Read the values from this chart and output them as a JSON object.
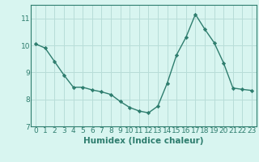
{
  "x": [
    0,
    1,
    2,
    3,
    4,
    5,
    6,
    7,
    8,
    9,
    10,
    11,
    12,
    13,
    14,
    15,
    16,
    17,
    18,
    19,
    20,
    21,
    22,
    23
  ],
  "y": [
    10.05,
    9.9,
    9.4,
    8.9,
    8.45,
    8.45,
    8.35,
    8.28,
    8.18,
    7.92,
    7.7,
    7.57,
    7.5,
    7.75,
    8.6,
    9.65,
    10.3,
    11.15,
    10.6,
    10.1,
    9.35,
    8.42,
    8.37,
    8.33
  ],
  "line_color": "#2e7d6e",
  "marker": "D",
  "marker_size": 2.2,
  "linewidth": 1.0,
  "bg_color": "#d8f5f0",
  "grid_color": "#b8ddd8",
  "xlabel": "Humidex (Indice chaleur)",
  "xlabel_fontsize": 7.5,
  "ylim": [
    7,
    11.5
  ],
  "xlim": [
    -0.5,
    23.5
  ],
  "yticks": [
    7,
    8,
    9,
    10,
    11
  ],
  "xtick_labels": [
    "0",
    "1",
    "2",
    "3",
    "4",
    "5",
    "6",
    "7",
    "8",
    "9",
    "10",
    "11",
    "12",
    "13",
    "14",
    "15",
    "16",
    "17",
    "18",
    "19",
    "20",
    "21",
    "22",
    "23"
  ],
  "tick_fontsize": 6.5,
  "spine_color": "#2e7d6e"
}
